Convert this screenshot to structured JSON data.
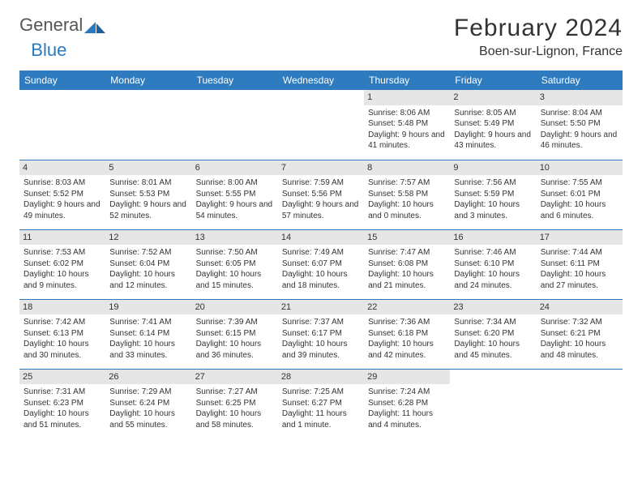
{
  "brand": {
    "part1": "General",
    "part2": "Blue"
  },
  "title": "February 2024",
  "location": "Boen-sur-Lignon, France",
  "colors": {
    "header_bg": "#2e7bbf",
    "header_text": "#ffffff",
    "daynum_bg": "#e6e6e6",
    "row_border": "#2e7bbf",
    "text": "#333333",
    "brand_blue": "#2a7ac0"
  },
  "weekdays": [
    "Sunday",
    "Monday",
    "Tuesday",
    "Wednesday",
    "Thursday",
    "Friday",
    "Saturday"
  ],
  "weeks": [
    [
      null,
      null,
      null,
      null,
      {
        "n": "1",
        "sunrise": "Sunrise: 8:06 AM",
        "sunset": "Sunset: 5:48 PM",
        "daylight": "Daylight: 9 hours and 41 minutes."
      },
      {
        "n": "2",
        "sunrise": "Sunrise: 8:05 AM",
        "sunset": "Sunset: 5:49 PM",
        "daylight": "Daylight: 9 hours and 43 minutes."
      },
      {
        "n": "3",
        "sunrise": "Sunrise: 8:04 AM",
        "sunset": "Sunset: 5:50 PM",
        "daylight": "Daylight: 9 hours and 46 minutes."
      }
    ],
    [
      {
        "n": "4",
        "sunrise": "Sunrise: 8:03 AM",
        "sunset": "Sunset: 5:52 PM",
        "daylight": "Daylight: 9 hours and 49 minutes."
      },
      {
        "n": "5",
        "sunrise": "Sunrise: 8:01 AM",
        "sunset": "Sunset: 5:53 PM",
        "daylight": "Daylight: 9 hours and 52 minutes."
      },
      {
        "n": "6",
        "sunrise": "Sunrise: 8:00 AM",
        "sunset": "Sunset: 5:55 PM",
        "daylight": "Daylight: 9 hours and 54 minutes."
      },
      {
        "n": "7",
        "sunrise": "Sunrise: 7:59 AM",
        "sunset": "Sunset: 5:56 PM",
        "daylight": "Daylight: 9 hours and 57 minutes."
      },
      {
        "n": "8",
        "sunrise": "Sunrise: 7:57 AM",
        "sunset": "Sunset: 5:58 PM",
        "daylight": "Daylight: 10 hours and 0 minutes."
      },
      {
        "n": "9",
        "sunrise": "Sunrise: 7:56 AM",
        "sunset": "Sunset: 5:59 PM",
        "daylight": "Daylight: 10 hours and 3 minutes."
      },
      {
        "n": "10",
        "sunrise": "Sunrise: 7:55 AM",
        "sunset": "Sunset: 6:01 PM",
        "daylight": "Daylight: 10 hours and 6 minutes."
      }
    ],
    [
      {
        "n": "11",
        "sunrise": "Sunrise: 7:53 AM",
        "sunset": "Sunset: 6:02 PM",
        "daylight": "Daylight: 10 hours and 9 minutes."
      },
      {
        "n": "12",
        "sunrise": "Sunrise: 7:52 AM",
        "sunset": "Sunset: 6:04 PM",
        "daylight": "Daylight: 10 hours and 12 minutes."
      },
      {
        "n": "13",
        "sunrise": "Sunrise: 7:50 AM",
        "sunset": "Sunset: 6:05 PM",
        "daylight": "Daylight: 10 hours and 15 minutes."
      },
      {
        "n": "14",
        "sunrise": "Sunrise: 7:49 AM",
        "sunset": "Sunset: 6:07 PM",
        "daylight": "Daylight: 10 hours and 18 minutes."
      },
      {
        "n": "15",
        "sunrise": "Sunrise: 7:47 AM",
        "sunset": "Sunset: 6:08 PM",
        "daylight": "Daylight: 10 hours and 21 minutes."
      },
      {
        "n": "16",
        "sunrise": "Sunrise: 7:46 AM",
        "sunset": "Sunset: 6:10 PM",
        "daylight": "Daylight: 10 hours and 24 minutes."
      },
      {
        "n": "17",
        "sunrise": "Sunrise: 7:44 AM",
        "sunset": "Sunset: 6:11 PM",
        "daylight": "Daylight: 10 hours and 27 minutes."
      }
    ],
    [
      {
        "n": "18",
        "sunrise": "Sunrise: 7:42 AM",
        "sunset": "Sunset: 6:13 PM",
        "daylight": "Daylight: 10 hours and 30 minutes."
      },
      {
        "n": "19",
        "sunrise": "Sunrise: 7:41 AM",
        "sunset": "Sunset: 6:14 PM",
        "daylight": "Daylight: 10 hours and 33 minutes."
      },
      {
        "n": "20",
        "sunrise": "Sunrise: 7:39 AM",
        "sunset": "Sunset: 6:15 PM",
        "daylight": "Daylight: 10 hours and 36 minutes."
      },
      {
        "n": "21",
        "sunrise": "Sunrise: 7:37 AM",
        "sunset": "Sunset: 6:17 PM",
        "daylight": "Daylight: 10 hours and 39 minutes."
      },
      {
        "n": "22",
        "sunrise": "Sunrise: 7:36 AM",
        "sunset": "Sunset: 6:18 PM",
        "daylight": "Daylight: 10 hours and 42 minutes."
      },
      {
        "n": "23",
        "sunrise": "Sunrise: 7:34 AM",
        "sunset": "Sunset: 6:20 PM",
        "daylight": "Daylight: 10 hours and 45 minutes."
      },
      {
        "n": "24",
        "sunrise": "Sunrise: 7:32 AM",
        "sunset": "Sunset: 6:21 PM",
        "daylight": "Daylight: 10 hours and 48 minutes."
      }
    ],
    [
      {
        "n": "25",
        "sunrise": "Sunrise: 7:31 AM",
        "sunset": "Sunset: 6:23 PM",
        "daylight": "Daylight: 10 hours and 51 minutes."
      },
      {
        "n": "26",
        "sunrise": "Sunrise: 7:29 AM",
        "sunset": "Sunset: 6:24 PM",
        "daylight": "Daylight: 10 hours and 55 minutes."
      },
      {
        "n": "27",
        "sunrise": "Sunrise: 7:27 AM",
        "sunset": "Sunset: 6:25 PM",
        "daylight": "Daylight: 10 hours and 58 minutes."
      },
      {
        "n": "28",
        "sunrise": "Sunrise: 7:25 AM",
        "sunset": "Sunset: 6:27 PM",
        "daylight": "Daylight: 11 hours and 1 minute."
      },
      {
        "n": "29",
        "sunrise": "Sunrise: 7:24 AM",
        "sunset": "Sunset: 6:28 PM",
        "daylight": "Daylight: 11 hours and 4 minutes."
      },
      null,
      null
    ]
  ]
}
